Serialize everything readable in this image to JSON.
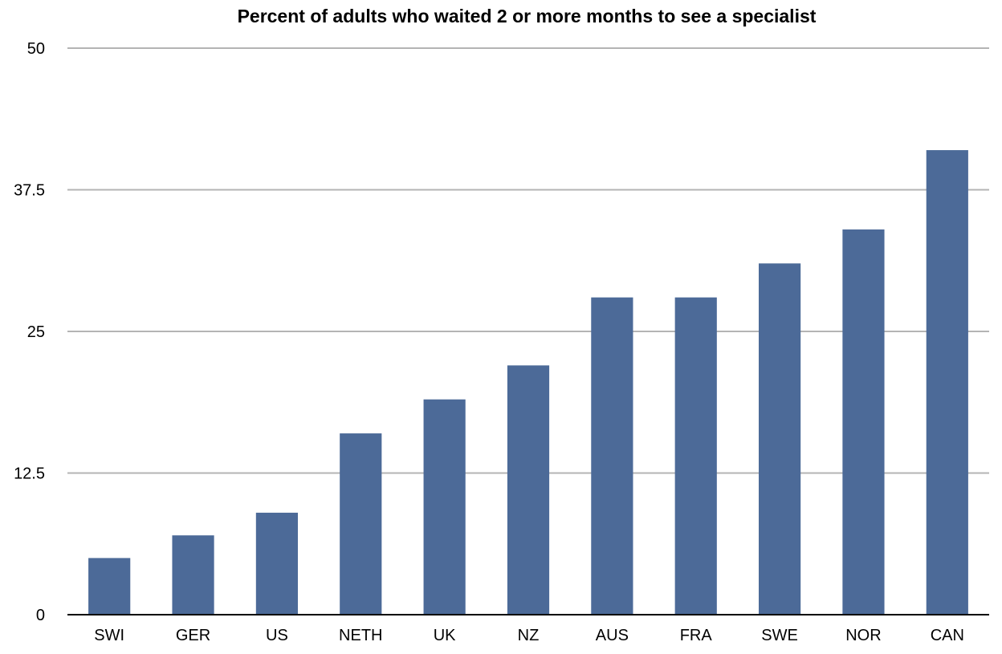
{
  "chart_data": {
    "type": "bar",
    "title": "Percent of adults who waited 2 or more months to see a specialist",
    "xlabel": "",
    "ylabel": "",
    "categories": [
      "SWI",
      "GER",
      "US",
      "NETH",
      "UK",
      "NZ",
      "AUS",
      "FRA",
      "SWE",
      "NOR",
      "CAN"
    ],
    "values": [
      5,
      7,
      9,
      16,
      19,
      22,
      28,
      28,
      31,
      34,
      41
    ],
    "ylim": [
      0,
      50
    ],
    "yticks": [
      "0",
      "12.5",
      "25",
      "37.5",
      "50"
    ],
    "grid": true,
    "legend": "none",
    "colors": {
      "bar": "#4c6a98",
      "gridline": "#b4b4b4",
      "axis": "#000000"
    }
  }
}
